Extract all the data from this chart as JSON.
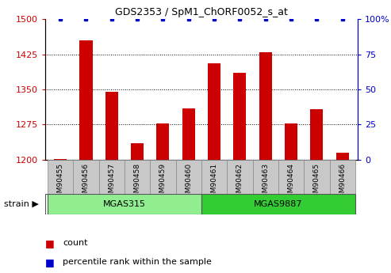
{
  "title": "GDS2353 / SpM1_ChORF0052_s_at",
  "samples": [
    "GSM90455",
    "GSM90456",
    "GSM90457",
    "GSM90458",
    "GSM90459",
    "GSM90460",
    "GSM90461",
    "GSM90462",
    "GSM90463",
    "GSM90464",
    "GSM90465",
    "GSM90466"
  ],
  "counts": [
    1202,
    1455,
    1345,
    1235,
    1278,
    1310,
    1405,
    1385,
    1430,
    1278,
    1308,
    1215
  ],
  "percentiles": [
    100,
    100,
    100,
    100,
    100,
    100,
    100,
    100,
    100,
    100,
    100,
    100
  ],
  "group1_label": "MGAS315",
  "group1_n": 6,
  "group1_color": "#90EE90",
  "group2_label": "MGAS9887",
  "group2_n": 6,
  "group2_color": "#33CC33",
  "ylim_left": [
    1200,
    1500
  ],
  "ylim_right": [
    0,
    100
  ],
  "yticks_left": [
    1200,
    1275,
    1350,
    1425,
    1500
  ],
  "yticks_right": [
    0,
    25,
    50,
    75,
    100
  ],
  "ytick_right_labels": [
    "0",
    "25",
    "50",
    "75",
    "100%"
  ],
  "bar_color": "#CC0000",
  "dot_color": "#0000CC",
  "bar_width": 0.5,
  "background_color": "#ffffff",
  "tick_label_color_left": "#CC0000",
  "tick_label_color_right": "#0000CC",
  "grid_color": "#000000",
  "xtick_bg_color": "#C8C8C8",
  "legend_count_label": "count",
  "legend_pct_label": "percentile rank within the sample"
}
